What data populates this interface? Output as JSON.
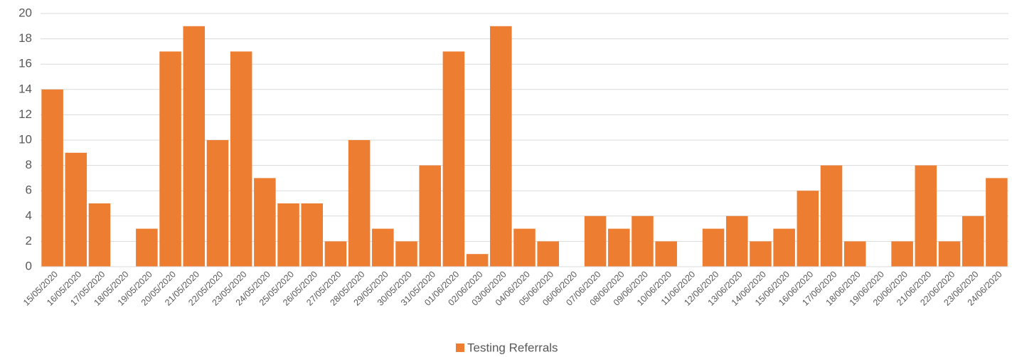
{
  "chart_data": {
    "type": "bar",
    "categories": [
      "15/05/2020",
      "16/05/2020",
      "17/05/2020",
      "18/05/2020",
      "19/05/2020",
      "20/05/2020",
      "21/05/2020",
      "22/05/2020",
      "23/05/2020",
      "24/05/2020",
      "25/05/2020",
      "26/05/2020",
      "27/05/2020",
      "28/05/2020",
      "29/05/2020",
      "30/05/2020",
      "31/05/2020",
      "01/06/2020",
      "02/06/2020",
      "03/06/2020",
      "04/06/2020",
      "05/06/2020",
      "06/06/2020",
      "07/06/2020",
      "08/06/2020",
      "09/06/2020",
      "10/06/2020",
      "11/06/2020",
      "12/06/2020",
      "13/06/2020",
      "14/06/2020",
      "15/06/2020",
      "16/06/2020",
      "17/06/2020",
      "18/06/2020",
      "19/06/2020",
      "20/06/2020",
      "21/06/2020",
      "22/06/2020",
      "23/06/2020",
      "24/06/2020"
    ],
    "series": [
      {
        "name": "Testing Referrals",
        "color": "#ed7d31",
        "values": [
          14,
          9,
          5,
          0,
          3,
          17,
          19,
          10,
          17,
          7,
          5,
          5,
          2,
          10,
          3,
          2,
          8,
          17,
          1,
          19,
          3,
          2,
          0,
          4,
          3,
          4,
          2,
          0,
          3,
          4,
          2,
          3,
          6,
          8,
          2,
          0,
          2,
          8,
          2,
          4,
          7
        ]
      }
    ],
    "ylim": [
      0,
      20
    ],
    "yticks": [
      0,
      2,
      4,
      6,
      8,
      10,
      12,
      14,
      16,
      18,
      20
    ],
    "grid": true,
    "legend": "bottom"
  }
}
